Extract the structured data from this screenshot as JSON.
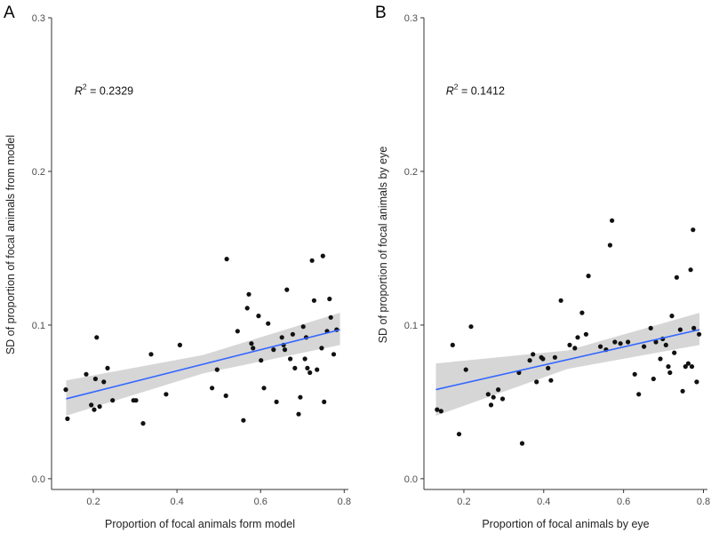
{
  "chart_data": [
    {
      "type": "scatter",
      "panel_label": "A",
      "xlabel": "Proportion of focal animals form model",
      "ylabel": "SD of proportion of focal animals from model",
      "xlim": [
        0.1,
        0.81
      ],
      "ylim": [
        -0.007,
        0.3
      ],
      "x_ticks": [
        0.2,
        0.4,
        0.6,
        0.8
      ],
      "y_ticks": [
        0.0,
        0.1,
        0.2,
        0.3
      ],
      "x_tick_labels": [
        "0.2",
        "0.4",
        "0.6",
        "0.8"
      ],
      "y_tick_labels": [
        "0.0",
        "0.1",
        "0.2",
        "0.3"
      ],
      "annotation": {
        "r2_base": "R",
        "r2_sup": "2",
        "r2_value": " = 0.2329",
        "x": 0.155,
        "y": 0.25
      },
      "fit": {
        "method": "linear",
        "x": [
          0.135,
          0.79
        ],
        "y": [
          0.052,
          0.097
        ],
        "ci_low": [
          0.041,
          0.087
        ],
        "ci_high": [
          0.064,
          0.108
        ]
      },
      "points": {
        "x": [
          0.134,
          0.138,
          0.183,
          0.195,
          0.202,
          0.205,
          0.208,
          0.215,
          0.225,
          0.234,
          0.246,
          0.296,
          0.302,
          0.319,
          0.338,
          0.374,
          0.407,
          0.484,
          0.496,
          0.517,
          0.519,
          0.545,
          0.559,
          0.568,
          0.572,
          0.578,
          0.582,
          0.595,
          0.601,
          0.608,
          0.618,
          0.631,
          0.638,
          0.651,
          0.655,
          0.658,
          0.663,
          0.671,
          0.677,
          0.682,
          0.691,
          0.695,
          0.702,
          0.706,
          0.709,
          0.712,
          0.718,
          0.723,
          0.728,
          0.735,
          0.746,
          0.749,
          0.752,
          0.759,
          0.765,
          0.768,
          0.775,
          0.782
        ],
        "y": [
          0.058,
          0.039,
          0.068,
          0.048,
          0.045,
          0.065,
          0.092,
          0.047,
          0.063,
          0.072,
          0.051,
          0.051,
          0.051,
          0.036,
          0.081,
          0.055,
          0.087,
          0.059,
          0.071,
          0.054,
          0.143,
          0.096,
          0.038,
          0.111,
          0.12,
          0.088,
          0.085,
          0.106,
          0.077,
          0.059,
          0.101,
          0.084,
          0.05,
          0.092,
          0.087,
          0.084,
          0.123,
          0.078,
          0.094,
          0.072,
          0.042,
          0.053,
          0.099,
          0.078,
          0.092,
          0.072,
          0.069,
          0.142,
          0.116,
          0.071,
          0.085,
          0.145,
          0.05,
          0.096,
          0.117,
          0.105,
          0.081,
          0.097
        ]
      }
    },
    {
      "type": "scatter",
      "panel_label": "B",
      "xlabel": "Proportion of focal animals by eye",
      "ylabel": "SD of proportion of focal animals by eye",
      "xlim": [
        0.1,
        0.81
      ],
      "ylim": [
        -0.007,
        0.3
      ],
      "x_ticks": [
        0.2,
        0.4,
        0.6,
        0.8
      ],
      "y_ticks": [
        0.0,
        0.1,
        0.2,
        0.3
      ],
      "x_tick_labels": [
        "0.2",
        "0.4",
        "0.6",
        "0.8"
      ],
      "y_tick_labels": [
        "0.0",
        "0.1",
        "0.2",
        "0.3"
      ],
      "annotation": {
        "r2_base": "R",
        "r2_sup": "2",
        "r2_value": " = 0.1412",
        "x": 0.155,
        "y": 0.25
      },
      "fit": {
        "method": "linear",
        "x": [
          0.13,
          0.79
        ],
        "y": [
          0.058,
          0.097
        ],
        "ci_low": [
          0.041,
          0.087
        ],
        "ci_high": [
          0.075,
          0.108
        ]
      },
      "points": {
        "x": [
          0.133,
          0.143,
          0.172,
          0.188,
          0.205,
          0.218,
          0.261,
          0.268,
          0.274,
          0.286,
          0.297,
          0.338,
          0.346,
          0.365,
          0.373,
          0.382,
          0.394,
          0.398,
          0.411,
          0.418,
          0.428,
          0.443,
          0.465,
          0.478,
          0.485,
          0.496,
          0.506,
          0.512,
          0.542,
          0.556,
          0.566,
          0.571,
          0.578,
          0.592,
          0.611,
          0.628,
          0.638,
          0.651,
          0.668,
          0.675,
          0.681,
          0.692,
          0.698,
          0.706,
          0.712,
          0.716,
          0.721,
          0.727,
          0.733,
          0.742,
          0.748,
          0.755,
          0.762,
          0.768,
          0.771,
          0.774,
          0.776,
          0.783,
          0.789
        ],
        "y": [
          0.045,
          0.044,
          0.087,
          0.029,
          0.071,
          0.099,
          0.055,
          0.048,
          0.053,
          0.058,
          0.052,
          0.069,
          0.023,
          0.077,
          0.081,
          0.063,
          0.079,
          0.078,
          0.072,
          0.064,
          0.079,
          0.116,
          0.087,
          0.085,
          0.092,
          0.108,
          0.094,
          0.132,
          0.086,
          0.084,
          0.152,
          0.168,
          0.089,
          0.088,
          0.089,
          0.068,
          0.055,
          0.086,
          0.098,
          0.065,
          0.089,
          0.078,
          0.091,
          0.087,
          0.073,
          0.069,
          0.106,
          0.082,
          0.131,
          0.097,
          0.057,
          0.073,
          0.075,
          0.136,
          0.073,
          0.162,
          0.098,
          0.063,
          0.094
        ]
      }
    }
  ]
}
